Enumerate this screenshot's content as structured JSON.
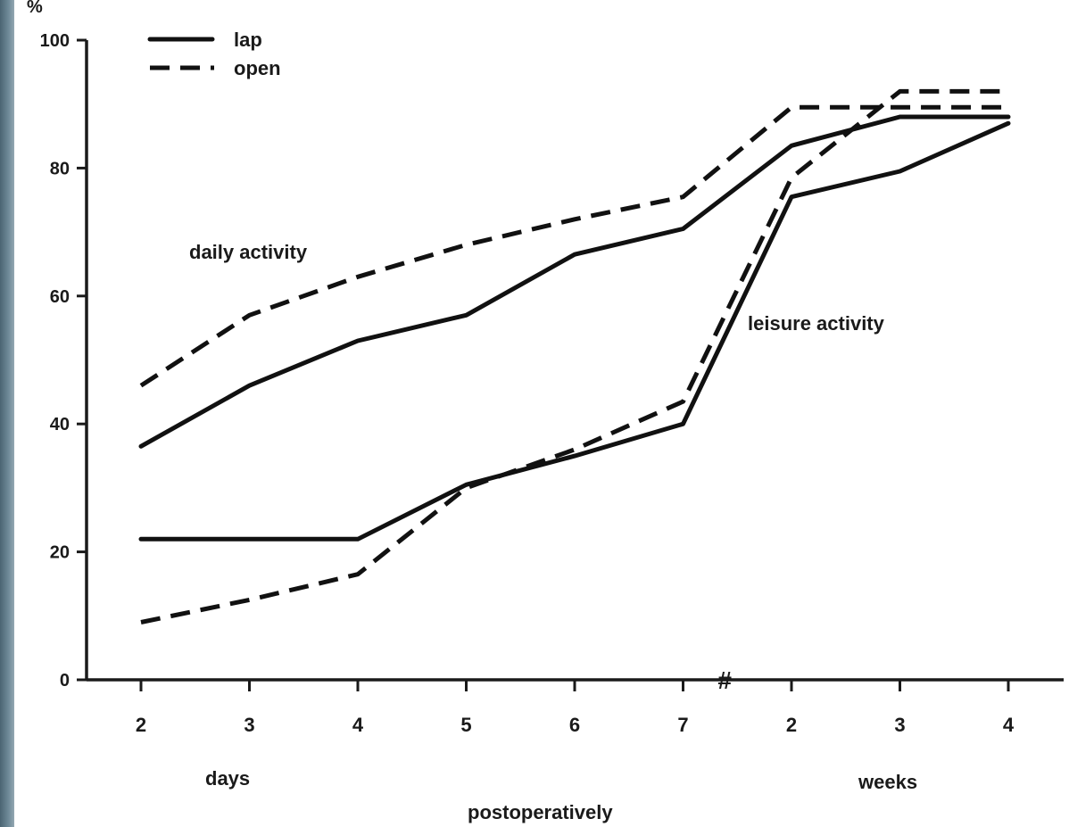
{
  "chart_data": {
    "type": "line",
    "ylabel": "%",
    "ylim": [
      0,
      100
    ],
    "yticks": [
      0,
      20,
      40,
      60,
      80,
      100
    ],
    "categories": [
      "2",
      "3",
      "4",
      "5",
      "6",
      "7",
      "2",
      "3",
      "4"
    ],
    "x_group_labels": {
      "days": "days",
      "weeks": "weeks",
      "xlabel": "postoperatively"
    },
    "axis_break_mark": "#",
    "grid": false,
    "legend_position": "top-left",
    "legend": [
      {
        "name": "lap",
        "style": "solid"
      },
      {
        "name": "open",
        "style": "dashed"
      }
    ],
    "annotations": {
      "daily": "daily activity",
      "leisure": "leisure activity"
    },
    "series": [
      {
        "name": "lap",
        "group": "daily activity",
        "style": "solid",
        "values": [
          36.5,
          46,
          53,
          57,
          66.5,
          70.5,
          83.5,
          88,
          88
        ]
      },
      {
        "name": "open",
        "group": "daily activity",
        "style": "dashed",
        "values": [
          46,
          57,
          63,
          68,
          72,
          75.5,
          89.5,
          89.5,
          89.5
        ]
      },
      {
        "name": "lap",
        "group": "leisure activity",
        "style": "solid",
        "values": [
          22,
          22,
          22,
          30.5,
          35,
          40,
          75.5,
          79.5,
          87
        ]
      },
      {
        "name": "open",
        "group": "leisure activity",
        "style": "dashed",
        "values": [
          9,
          12.5,
          16.5,
          30,
          36,
          43.5,
          78.5,
          92,
          92
        ]
      }
    ]
  }
}
